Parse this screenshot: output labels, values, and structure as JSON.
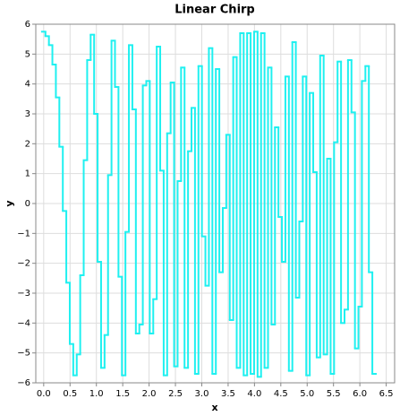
{
  "chart_data": {
    "type": "step",
    "title": "Linear Chirp",
    "x_label": "x",
    "y_label": "y",
    "x": [
      0,
      0.066,
      0.132,
      0.198,
      0.264,
      0.33,
      0.396,
      0.462,
      0.528,
      0.594,
      0.66,
      0.726,
      0.792,
      0.858,
      0.924,
      0.99,
      1.056,
      1.122,
      1.188,
      1.254,
      1.32,
      1.386,
      1.452,
      1.518,
      1.584,
      1.65,
      1.716,
      1.782,
      1.848,
      1.914,
      1.98,
      2.046,
      2.112,
      2.178,
      2.244,
      2.31,
      2.376,
      2.442,
      2.508,
      2.574,
      2.64,
      2.706,
      2.772,
      2.838,
      2.904,
      2.97,
      3.036,
      3.102,
      3.168,
      3.234,
      3.3,
      3.366,
      3.432,
      3.498,
      3.564,
      3.63,
      3.696,
      3.762,
      3.828,
      3.894,
      3.96,
      4.026,
      4.092,
      4.158,
      4.224,
      4.29,
      4.356,
      4.422,
      4.488,
      4.554,
      4.62,
      4.686,
      4.752,
      4.818,
      4.884,
      4.95,
      5.016,
      5.082,
      5.148,
      5.214,
      5.28,
      5.346,
      5.412,
      5.478,
      5.544,
      5.61,
      5.676,
      5.742,
      5.808,
      5.874,
      5.94,
      6.006,
      6.072,
      6.138,
      6.204,
      6.27
    ],
    "series": [
      {
        "color": "#1ff0f0",
        "values": [
          5.75,
          5.6,
          5.3,
          4.65,
          3.55,
          1.9,
          -0.25,
          -2.65,
          -4.7,
          -5.75,
          -5.05,
          -2.4,
          1.45,
          4.8,
          5.65,
          3.0,
          -1.95,
          -5.5,
          -4.4,
          0.95,
          5.45,
          3.9,
          -2.45,
          -5.75,
          -0.95,
          5.3,
          3.15,
          -4.35,
          -4.05,
          3.95,
          4.1,
          -4.35,
          -3.2,
          5.25,
          1.1,
          -5.75,
          2.35,
          4.05,
          -5.45,
          0.75,
          4.55,
          -5.5,
          1.75,
          3.2,
          -5.7,
          4.6,
          -1.1,
          -2.75,
          5.2,
          -5.7,
          4.5,
          -2.3,
          -0.15,
          2.3,
          -3.9,
          4.9,
          -5.5,
          5.7,
          -5.75,
          5.7,
          -5.7,
          5.75,
          -5.8,
          5.7,
          -5.5,
          4.55,
          -4.05,
          2.55,
          -0.45,
          -1.95,
          4.25,
          -5.6,
          5.4,
          -3.15,
          -0.6,
          4.25,
          -5.75,
          3.7,
          1.05,
          -5.15,
          4.95,
          -5.05,
          1.5,
          -5.7,
          2.05,
          4.75,
          -4.0,
          -3.55,
          4.8,
          3.05,
          -4.85,
          -3.45,
          4.1,
          4.6,
          -2.3,
          -5.7
        ]
      }
    ],
    "xlim": [
      -0.15,
      6.66
    ],
    "ylim": [
      -6,
      6
    ],
    "xticks": [
      {
        "value": 0,
        "label": "0.0"
      },
      {
        "value": 0.5,
        "label": "0.5"
      },
      {
        "value": 1,
        "label": "1.0"
      },
      {
        "value": 1.5,
        "label": "1.5"
      },
      {
        "value": 2,
        "label": "2.0"
      },
      {
        "value": 2.5,
        "label": "2.5"
      },
      {
        "value": 3,
        "label": "3.0"
      },
      {
        "value": 3.5,
        "label": "3.5"
      },
      {
        "value": 4,
        "label": "4.0"
      },
      {
        "value": 4.5,
        "label": "4.5"
      },
      {
        "value": 5,
        "label": "5.0"
      },
      {
        "value": 5.5,
        "label": "5.5"
      },
      {
        "value": 6,
        "label": "6.0"
      },
      {
        "value": 6.5,
        "label": "6.5"
      }
    ],
    "yticks": [
      {
        "value": -6,
        "label": "−6"
      },
      {
        "value": -5,
        "label": "−5"
      },
      {
        "value": -4,
        "label": "−4"
      },
      {
        "value": -3,
        "label": "−3"
      },
      {
        "value": -2,
        "label": "−2"
      },
      {
        "value": -1,
        "label": "−1"
      },
      0,
      1,
      2,
      3,
      4,
      5,
      6
    ],
    "grid": true
  }
}
